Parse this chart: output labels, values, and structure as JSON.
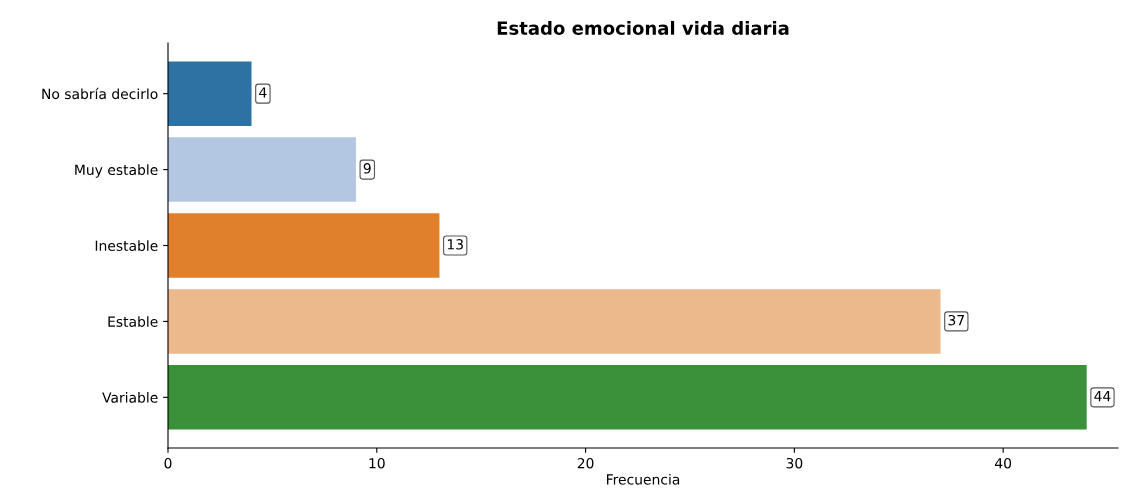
{
  "chart_data": {
    "type": "bar",
    "orientation": "horizontal",
    "title": "Estado emocional vida diaria",
    "xlabel": "Frecuencia",
    "categories": [
      "No sabría decirlo",
      "Muy estable",
      "Inestable",
      "Estable",
      "Variable"
    ],
    "values": [
      4,
      9,
      13,
      37,
      44
    ],
    "colors": [
      "#2e71a3",
      "#b3c7e3",
      "#e07f2c",
      "#ebb98b",
      "#3a913a"
    ],
    "xlim": [
      0,
      45.5
    ],
    "xticks": [
      0,
      10,
      20,
      30,
      40
    ],
    "data_labels": true,
    "grid": false,
    "legend": false
  }
}
